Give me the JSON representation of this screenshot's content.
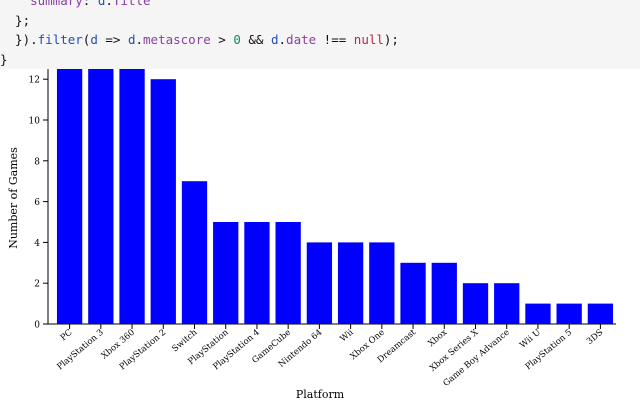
{
  "code": {
    "lines": [
      [
        {
          "t": "    ",
          "c": "plain"
        },
        {
          "t": "summary",
          "c": "prop"
        },
        {
          "t": ": ",
          "c": "plain"
        },
        {
          "t": "d",
          "c": "var"
        },
        {
          "t": ".",
          "c": "plain"
        },
        {
          "t": "Title",
          "c": "prop"
        }
      ],
      [
        {
          "t": "  };",
          "c": "plain"
        }
      ],
      [
        {
          "t": "  }).",
          "c": "plain"
        },
        {
          "t": "filter",
          "c": "method"
        },
        {
          "t": "(",
          "c": "plain"
        },
        {
          "t": "d",
          "c": "var"
        },
        {
          "t": " => ",
          "c": "plain"
        },
        {
          "t": "d",
          "c": "var"
        },
        {
          "t": ".",
          "c": "plain"
        },
        {
          "t": "metascore",
          "c": "prop"
        },
        {
          "t": " > ",
          "c": "plain"
        },
        {
          "t": "0",
          "c": "num"
        },
        {
          "t": " && ",
          "c": "plain"
        },
        {
          "t": "d",
          "c": "var"
        },
        {
          "t": ".",
          "c": "plain"
        },
        {
          "t": "date",
          "c": "prop"
        },
        {
          "t": " !== ",
          "c": "plain"
        },
        {
          "t": "null",
          "c": "null"
        },
        {
          "t": ");",
          "c": "plain"
        }
      ],
      [
        {
          "t": "}",
          "c": "plain"
        }
      ]
    ]
  },
  "chart_data": {
    "type": "bar",
    "categories": [
      "PC",
      "PlayStation 3",
      "Xbox 360",
      "PlayStation 2",
      "Switch",
      "PlayStation",
      "PlayStation 4",
      "GameCube",
      "Nintendo 64",
      "Wii",
      "Xbox One",
      "Dreamcast",
      "Xbox",
      "Xbox Series X",
      "Game Boy Advance",
      "Wii U",
      "PlayStation 5",
      "3DS"
    ],
    "values": [
      13,
      13,
      13,
      12,
      7,
      5,
      5,
      5,
      4,
      4,
      4,
      3,
      3,
      2,
      2,
      1,
      1,
      1
    ],
    "title": "",
    "xlabel": "Platform",
    "ylabel": "Number of Games",
    "ylim": [
      0,
      12.5
    ],
    "yticks": [
      0,
      2,
      4,
      6,
      8,
      10,
      12
    ],
    "bar_color": "#0000ff",
    "grid": false
  }
}
